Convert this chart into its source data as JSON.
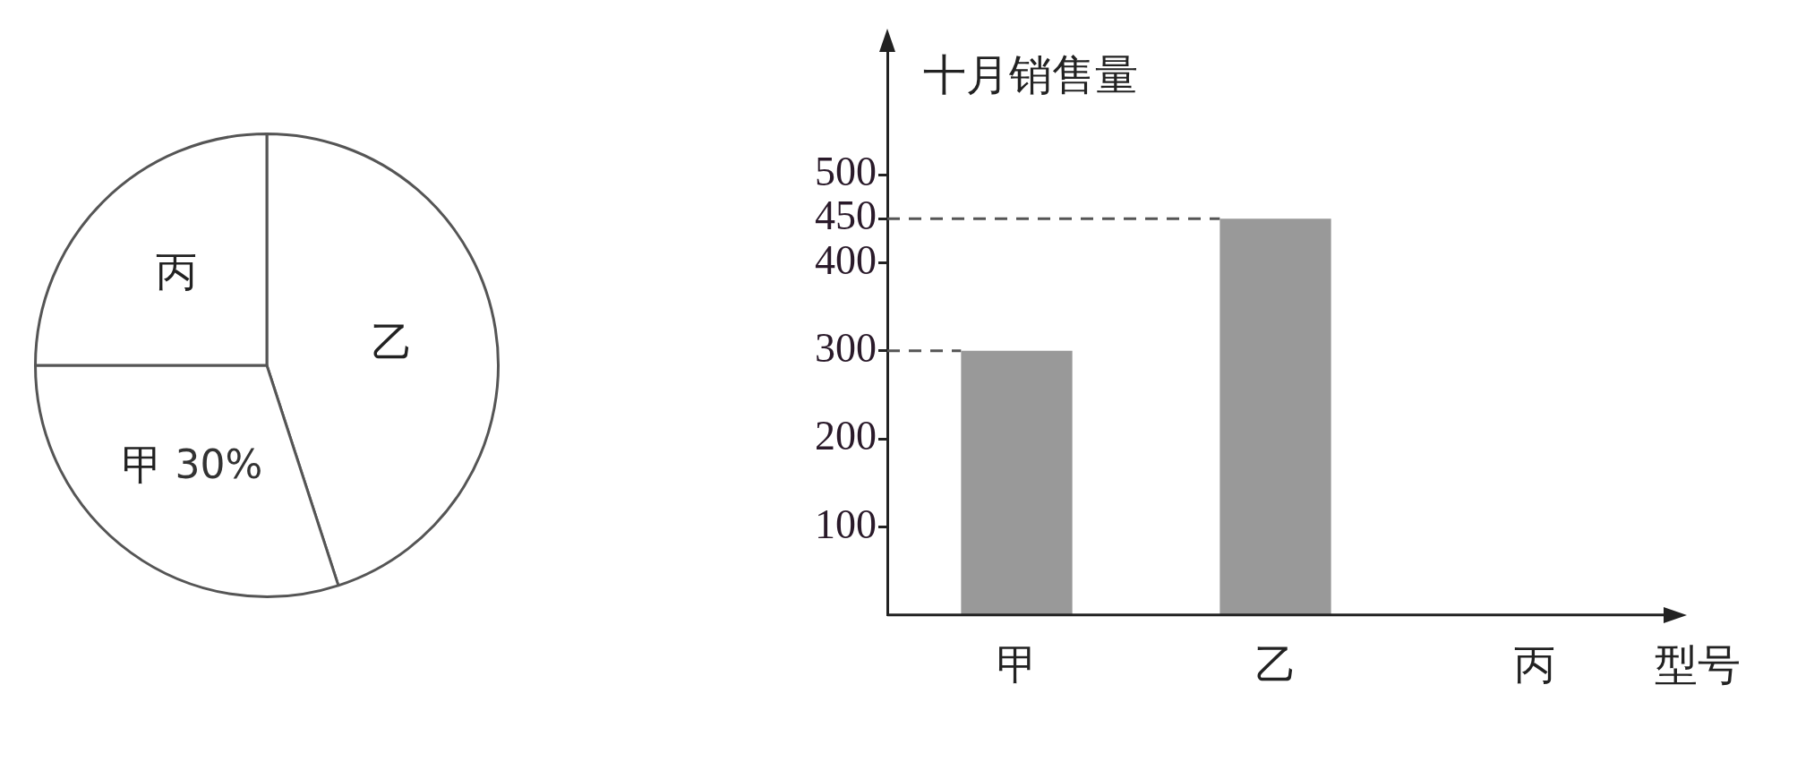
{
  "chart_data": [
    {
      "type": "pie",
      "categories": [
        "乙",
        "甲",
        "丙"
      ],
      "values": [
        45,
        30,
        25
      ],
      "colors": [
        "#ffffff",
        "#ffffff",
        "#ffffff"
      ],
      "value_labels": [
        null,
        "30%",
        null
      ]
    },
    {
      "type": "bar",
      "categories": [
        "甲",
        "乙",
        "丙"
      ],
      "values": [
        300,
        450,
        null
      ],
      "color": "#999999",
      "ylim": [
        0,
        650
      ],
      "yticks": [
        100,
        200,
        300,
        400,
        450,
        500
      ],
      "xlabel": "型号",
      "ylabel": "十月销售量",
      "ref_lines": [
        {
          "axis": "y",
          "value": 300,
          "line_style": "dashed"
        },
        {
          "axis": "y",
          "value": 450,
          "line_style": "dashed"
        }
      ]
    }
  ]
}
